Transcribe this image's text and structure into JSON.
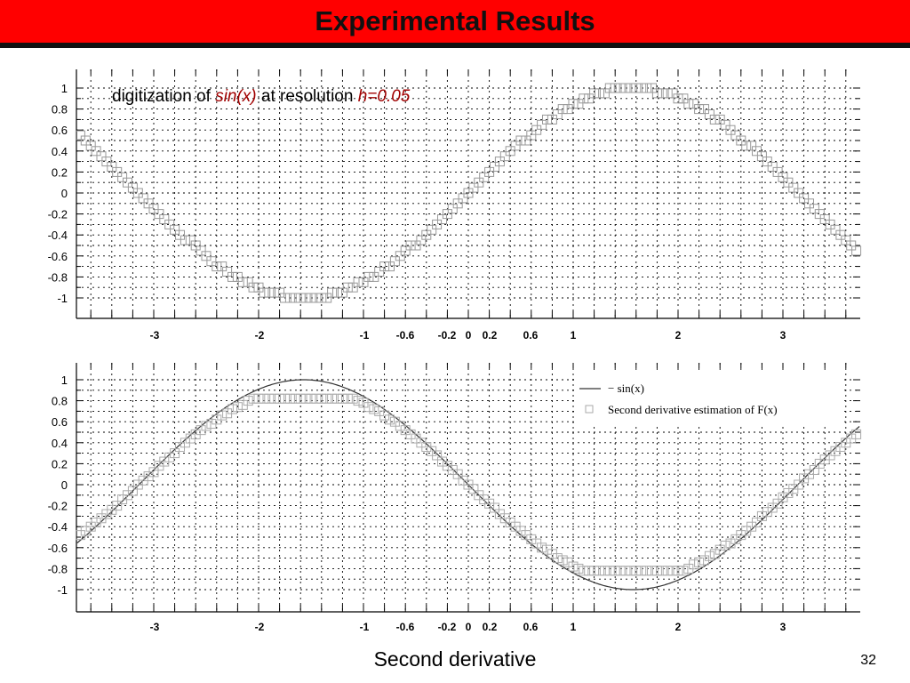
{
  "slide": {
    "title": "Experimental Results",
    "caption": "Second derivative",
    "page_number": "32"
  },
  "chart_data": [
    {
      "type": "scatter",
      "title_parts": [
        {
          "text": "digitization of ",
          "style": "normal"
        },
        {
          "text": "sin(x)",
          "style": "italic-accent"
        },
        {
          "text": " at resolution ",
          "style": "normal"
        },
        {
          "text": "h=0.05",
          "style": "italic-accent"
        }
      ],
      "accent_color": "#a00000",
      "marker_color": "#999999",
      "xlim": [
        -3.75,
        3.75
      ],
      "ylim": [
        -1.1,
        1.1
      ],
      "x_ticks": [
        -3,
        -2,
        -1,
        -0.6,
        -0.2,
        0,
        0.2,
        0.6,
        1,
        2,
        3
      ],
      "x_tick_labels": [
        "-3",
        "-2",
        "-1",
        "-0.6",
        "-0.2",
        "0",
        "0.2",
        "0.6",
        "1",
        "2",
        "3"
      ],
      "y_ticks": [
        1,
        0.8,
        0.6,
        0.4,
        0.2,
        0,
        -0.2,
        -0.4,
        -0.6,
        -0.8,
        -1
      ],
      "y_tick_labels": [
        "1",
        "0.8",
        "0.6",
        "0.4",
        "0.2",
        "0",
        "-0.2",
        "-0.4",
        "-0.6",
        "-0.8",
        "-1"
      ],
      "grid": true,
      "series": [
        {
          "function": "round(sin(x)/0.05)*0.05",
          "x_start": -3.7,
          "x_step": 0.05,
          "x_end": 3.7,
          "marker": "square",
          "drawn_as": "staircase"
        }
      ]
    },
    {
      "type": "line",
      "xlim": [
        -3.75,
        3.75
      ],
      "ylim": [
        -1.1,
        1.1
      ],
      "x_ticks": [
        -3,
        -2,
        -1,
        -0.6,
        -0.2,
        0,
        0.2,
        0.6,
        1,
        2,
        3
      ],
      "x_tick_labels": [
        "-3",
        "-2",
        "-1",
        "-0.6",
        "-0.2",
        "0",
        "0.2",
        "0.6",
        "1",
        "2",
        "3"
      ],
      "y_ticks": [
        1,
        0.8,
        0.6,
        0.4,
        0.2,
        0,
        -0.2,
        -0.4,
        -0.6,
        -0.8,
        -1
      ],
      "y_tick_labels": [
        "1",
        "0.8",
        "0.6",
        "0.4",
        "0.2",
        "0",
        "-0.2",
        "-0.4",
        "-0.6",
        "-0.8",
        "-1"
      ],
      "grid": true,
      "legend_position": "top-right",
      "line_color": "#333333",
      "marker_color": "#aaaaaa",
      "series": [
        {
          "name": "− sin(x)",
          "function": "-sin(x)",
          "style": "line"
        },
        {
          "name": "Second derivative estimation of F(x)",
          "function": "-0.82*sin(x) (flattened)",
          "x_start": -3.7,
          "x_step": 0.05,
          "x_end": 3.7,
          "style": "square-markers"
        }
      ]
    }
  ]
}
